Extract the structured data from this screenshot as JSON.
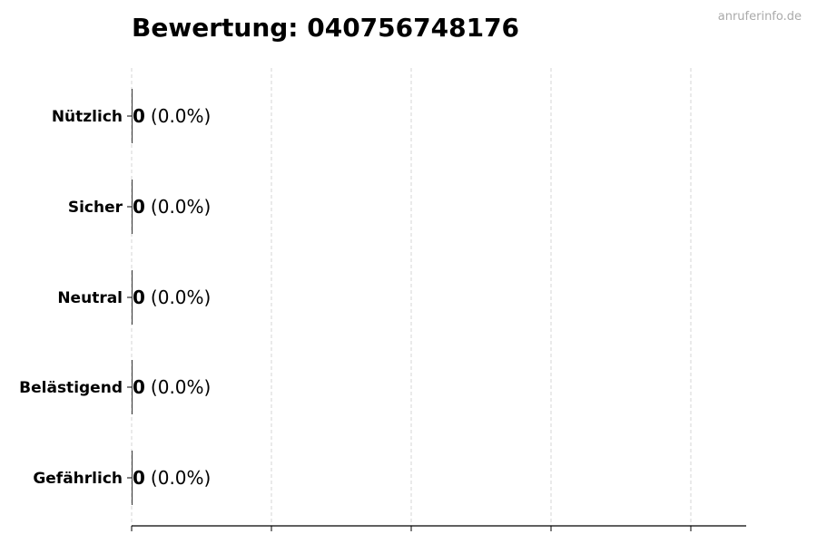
{
  "chart_data": {
    "type": "bar",
    "orientation": "horizontal",
    "title": "Bewertung: 040756748176",
    "watermark": "anruferinfo.de",
    "categories": [
      "Nützlich",
      "Sicher",
      "Neutral",
      "Belästigend",
      "Gefährlich"
    ],
    "values": [
      0,
      0,
      0,
      0,
      0
    ],
    "labels": [
      {
        "count": "0",
        "percent": "(0.0%)"
      },
      {
        "count": "0",
        "percent": "(0.0%)"
      },
      {
        "count": "0",
        "percent": "(0.0%)"
      },
      {
        "count": "0",
        "percent": "(0.0%)"
      },
      {
        "count": "0",
        "percent": "(0.0%)"
      }
    ],
    "xtick_count": 5,
    "grid": "x, dashed",
    "xlabel": "",
    "ylabel": "",
    "colors": {
      "grid": "#cccccc",
      "axis": "#000000",
      "watermark": "#aaaaaa"
    }
  }
}
